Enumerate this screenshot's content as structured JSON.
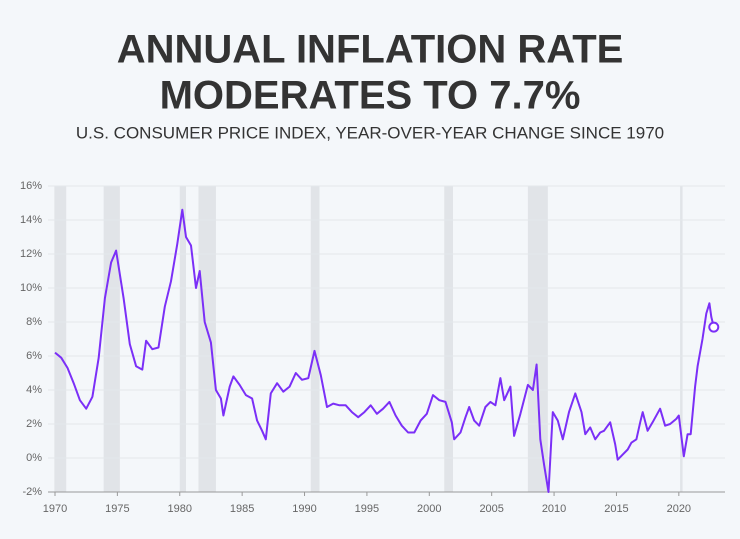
{
  "chart_data": {
    "type": "line",
    "title": "ANNUAL INFLATION RATE",
    "title_line2": "MODERATES TO 7.7%",
    "subtitle": "U.S. CONSUMER PRICE INDEX, YEAR-OVER-YEAR CHANGE SINCE 1970",
    "x": [
      1970.0,
      1970.5,
      1971.0,
      1971.5,
      1972.0,
      1972.5,
      1973.0,
      1973.5,
      1974.0,
      1974.5,
      1974.9,
      1975.5,
      1976.0,
      1976.5,
      1977.0,
      1977.3,
      1977.8,
      1978.3,
      1978.8,
      1979.3,
      1979.8,
      1980.2,
      1980.5,
      1980.9,
      1981.3,
      1981.6,
      1982.0,
      1982.5,
      1982.9,
      1983.3,
      1983.5,
      1984.0,
      1984.3,
      1984.8,
      1985.3,
      1985.8,
      1986.2,
      1986.6,
      1986.9,
      1987.3,
      1987.8,
      1988.3,
      1988.8,
      1989.3,
      1989.8,
      1990.3,
      1990.8,
      1991.3,
      1991.8,
      1992.3,
      1992.8,
      1993.3,
      1993.8,
      1994.3,
      1994.8,
      1995.3,
      1995.8,
      1996.3,
      1996.8,
      1997.3,
      1997.8,
      1998.3,
      1998.8,
      1999.3,
      1999.8,
      2000.3,
      2000.8,
      2001.3,
      2001.8,
      2002.0,
      2002.5,
      2002.9,
      2003.2,
      2003.6,
      2004.0,
      2004.5,
      2004.9,
      2005.3,
      2005.7,
      2006.0,
      2006.5,
      2006.8,
      2007.3,
      2007.9,
      2008.3,
      2008.6,
      2008.9,
      2009.2,
      2009.55,
      2009.9,
      2010.3,
      2010.7,
      2011.2,
      2011.7,
      2012.2,
      2012.5,
      2012.9,
      2013.3,
      2013.7,
      2014.0,
      2014.5,
      2014.9,
      2015.1,
      2015.5,
      2015.9,
      2016.2,
      2016.6,
      2016.9,
      2017.1,
      2017.5,
      2017.9,
      2018.5,
      2018.9,
      2019.3,
      2019.8,
      2020.0,
      2020.4,
      2020.7,
      2020.95,
      2021.3,
      2021.5,
      2021.9,
      2022.2,
      2022.45,
      2022.6,
      2022.8
    ],
    "series": [
      {
        "name": "CPI",
        "color": "#7b2ff7",
        "values": [
          6.2,
          5.9,
          5.3,
          4.4,
          3.4,
          2.9,
          3.6,
          5.9,
          9.4,
          11.5,
          12.2,
          9.4,
          6.7,
          5.4,
          5.2,
          6.9,
          6.4,
          6.5,
          8.9,
          10.4,
          12.6,
          14.6,
          13.0,
          12.5,
          10.0,
          11.0,
          8.0,
          6.8,
          4.0,
          3.5,
          2.5,
          4.2,
          4.8,
          4.3,
          3.7,
          3.5,
          2.2,
          1.6,
          1.1,
          3.8,
          4.4,
          3.9,
          4.2,
          5.0,
          4.6,
          4.7,
          6.3,
          4.9,
          3.0,
          3.2,
          3.1,
          3.1,
          2.7,
          2.4,
          2.7,
          3.1,
          2.6,
          2.9,
          3.3,
          2.5,
          1.9,
          1.5,
          1.5,
          2.2,
          2.6,
          3.7,
          3.4,
          3.3,
          2.1,
          1.1,
          1.5,
          2.4,
          3.0,
          2.2,
          1.9,
          3.0,
          3.3,
          3.1,
          4.7,
          3.4,
          4.2,
          1.3,
          2.6,
          4.3,
          4.0,
          5.5,
          1.1,
          -0.4,
          -2.0,
          2.7,
          2.2,
          1.1,
          2.7,
          3.8,
          2.7,
          1.4,
          1.8,
          1.1,
          1.5,
          1.6,
          2.1,
          0.8,
          -0.1,
          0.2,
          0.5,
          0.9,
          1.1,
          2.1,
          2.7,
          1.6,
          2.1,
          2.9,
          1.9,
          2.0,
          2.3,
          2.5,
          0.1,
          1.4,
          1.4,
          4.2,
          5.4,
          7.0,
          8.5,
          9.1,
          8.3,
          7.7
        ]
      }
    ],
    "recessions": [
      [
        1969.95,
        1970.9
      ],
      [
        1973.9,
        1975.2
      ],
      [
        1980.0,
        1980.5
      ],
      [
        1981.5,
        1982.9
      ],
      [
        1990.5,
        1991.2
      ],
      [
        2001.2,
        2001.9
      ],
      [
        2007.9,
        2009.5
      ],
      [
        2020.1,
        2020.3
      ]
    ],
    "xlim": [
      1969.44,
      2023.7
    ],
    "xticks": [
      1970,
      1975,
      1980,
      1985,
      1990,
      1995,
      2000,
      2005,
      2010,
      2015,
      2020
    ],
    "ylim": [
      -2,
      16
    ],
    "yticks": [
      {
        "value": -2,
        "label": "-2%"
      },
      {
        "value": 0,
        "label": "0%"
      },
      {
        "value": 2,
        "label": "2%"
      },
      {
        "value": 4,
        "label": "4%"
      },
      {
        "value": 6,
        "label": "6%"
      },
      {
        "value": 8,
        "label": "8%"
      },
      {
        "value": 10,
        "label": "10%"
      },
      {
        "value": 12,
        "label": "12%"
      },
      {
        "value": 14,
        "label": "14%"
      },
      {
        "value": 16,
        "label": "16%"
      }
    ],
    "grid": true
  }
}
